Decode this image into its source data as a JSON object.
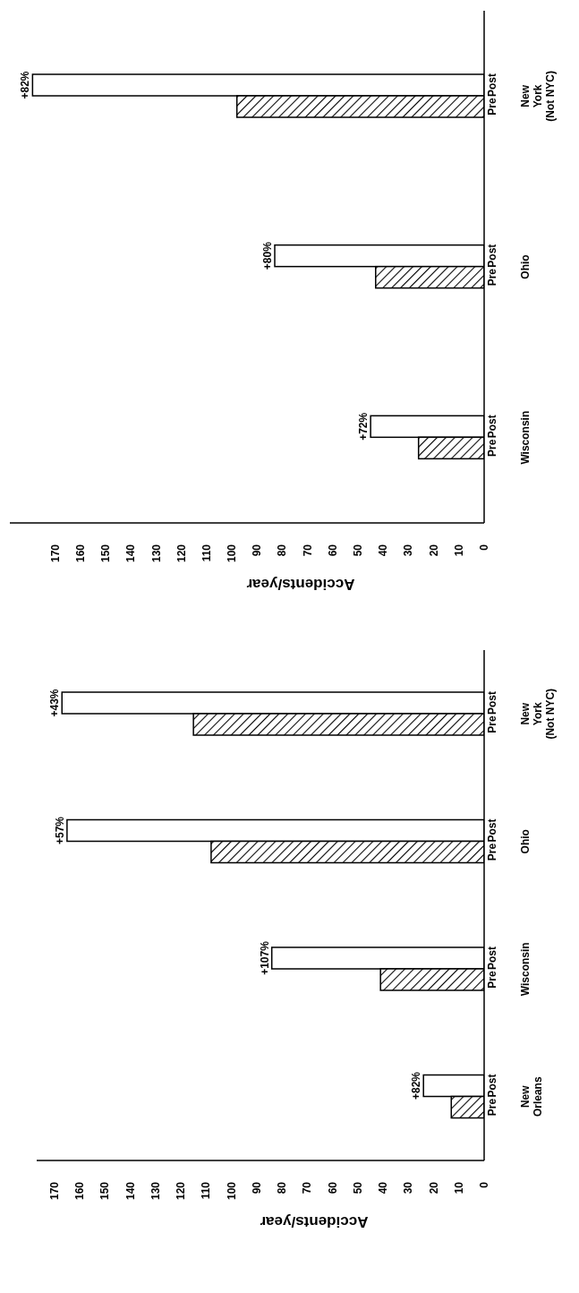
{
  "chart_data": [
    {
      "type": "bar",
      "orientation": "horizontal",
      "xlabel": "Accidents/year",
      "categories": [
        "New\nYork\n(Not NYC)",
        "Ohio",
        "Wisconsin"
      ],
      "series": [
        {
          "name": "Post",
          "color": "#ffffff",
          "values": [
            179,
            83,
            45
          ]
        },
        {
          "name": "Pre",
          "color": "#000000",
          "values": [
            98,
            43,
            26
          ]
        }
      ],
      "annotations": [
        {
          "text": "+82%",
          "x": 179,
          "y": "New\nYork\n(Not NYC)"
        },
        {
          "text": "+80%",
          "x": 83,
          "y": "Ohio"
        },
        {
          "text": "+72%",
          "x": 45,
          "y": "Wisconsin"
        }
      ],
      "xlim": [
        188,
        0
      ],
      "xticks": [
        170,
        160,
        150,
        140,
        130,
        120,
        110,
        100,
        90,
        80,
        70,
        60,
        50,
        40,
        30,
        20,
        10,
        0
      ],
      "grid": false,
      "legend": false
    },
    {
      "type": "bar",
      "orientation": "horizontal",
      "xlabel": "Accidents/year",
      "categories": [
        "New\nYork\n(Not NYC)",
        "Ohio",
        "Wisconsin",
        "New\nOrleans"
      ],
      "series": [
        {
          "name": "Post",
          "color": "#ffffff",
          "values": [
            167,
            165,
            84,
            24
          ]
        },
        {
          "name": "Pre",
          "color": "#000000",
          "values": [
            115,
            108,
            41,
            13
          ]
        }
      ],
      "annotations": [
        {
          "text": "+43%",
          "x": 167,
          "y": "New\nYork\n(Not NYC)"
        },
        {
          "text": "+57%",
          "x": 165,
          "y": "Ohio"
        },
        {
          "text": "+107%",
          "x": 84,
          "y": "Wisconsin"
        },
        {
          "text": "+82%",
          "x": 24,
          "y": "New\nOrleans"
        }
      ],
      "xlim": [
        177,
        0
      ],
      "xticks": [
        170,
        160,
        150,
        140,
        130,
        120,
        110,
        100,
        90,
        80,
        70,
        60,
        50,
        40,
        30,
        20,
        10,
        0
      ],
      "grid": false,
      "legend": false
    }
  ]
}
